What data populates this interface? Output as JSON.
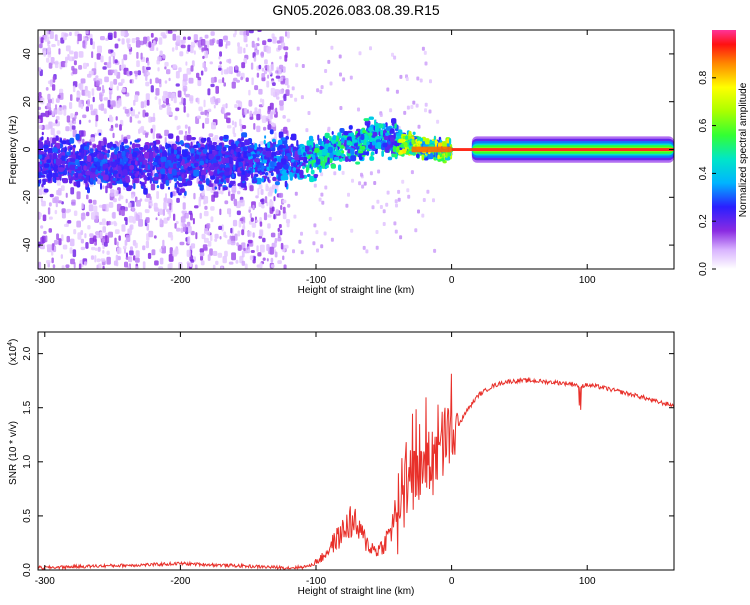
{
  "title": "GN05.2026.083.08.39.R15",
  "chart_data": [
    {
      "type": "heatmap",
      "name": "spectrogram",
      "xlabel": "Height of straight line (km)",
      "ylabel": "Frequency (Hz)",
      "xlim": [
        -305,
        164
      ],
      "ylim": [
        -50,
        50
      ],
      "xticks": [
        -300,
        -200,
        -100,
        0,
        100
      ],
      "yticks": [
        -40,
        -20,
        0,
        20,
        40
      ],
      "ridge": {
        "x": [
          -300,
          -250,
          -200,
          -150,
          -120,
          -100,
          -80,
          -60,
          -50,
          -40,
          -30,
          -20,
          -10,
          0,
          50,
          100,
          164
        ],
        "frequency": [
          -5,
          -7,
          -6,
          -5,
          -5,
          -3,
          1,
          4,
          5,
          3,
          2,
          0,
          0,
          0,
          0,
          0,
          0
        ]
      },
      "colorbar": {
        "label": "Normalized spectral amplitude",
        "range": [
          0,
          1
        ],
        "ticks": [
          0.0,
          0.2,
          0.4,
          0.6,
          0.8
        ]
      }
    },
    {
      "type": "line",
      "name": "snr",
      "xlabel": "Height of straight line (km)",
      "ylabel": "SNR (10 * v/v)",
      "yscale_label": "(x10",
      "yscale_exp": "4",
      "xlim": [
        -305,
        164
      ],
      "ylim": [
        0,
        2.2
      ],
      "xticks": [
        -300,
        -200,
        -100,
        0,
        100
      ],
      "yticks": [
        0.0,
        0.5,
        1.0,
        1.5,
        2.0
      ],
      "series": [
        {
          "name": "SNR",
          "color": "#e8302a",
          "x": [
            -305,
            -280,
            -250,
            -220,
            -200,
            -180,
            -160,
            -140,
            -120,
            -105,
            -95,
            -88,
            -80,
            -75,
            -70,
            -65,
            -60,
            -55,
            -50,
            -45,
            -40,
            -35,
            -30,
            -25,
            -20,
            -15,
            -10,
            -5,
            0,
            10,
            20,
            30,
            40,
            50,
            60,
            70,
            80,
            90,
            95,
            100,
            110,
            120,
            130,
            140,
            150,
            164
          ],
          "y": [
            0.02,
            0.03,
            0.04,
            0.05,
            0.06,
            0.05,
            0.04,
            0.03,
            0.02,
            0.03,
            0.1,
            0.2,
            0.3,
            0.38,
            0.34,
            0.25,
            0.18,
            0.15,
            0.2,
            0.3,
            0.5,
            0.8,
            1.0,
            0.9,
            0.95,
            1.1,
            1.05,
            1.1,
            1.2,
            1.45,
            1.62,
            1.7,
            1.74,
            1.75,
            1.75,
            1.74,
            1.73,
            1.72,
            1.7,
            1.71,
            1.69,
            1.66,
            1.63,
            1.6,
            1.56,
            1.52
          ]
        }
      ]
    }
  ]
}
